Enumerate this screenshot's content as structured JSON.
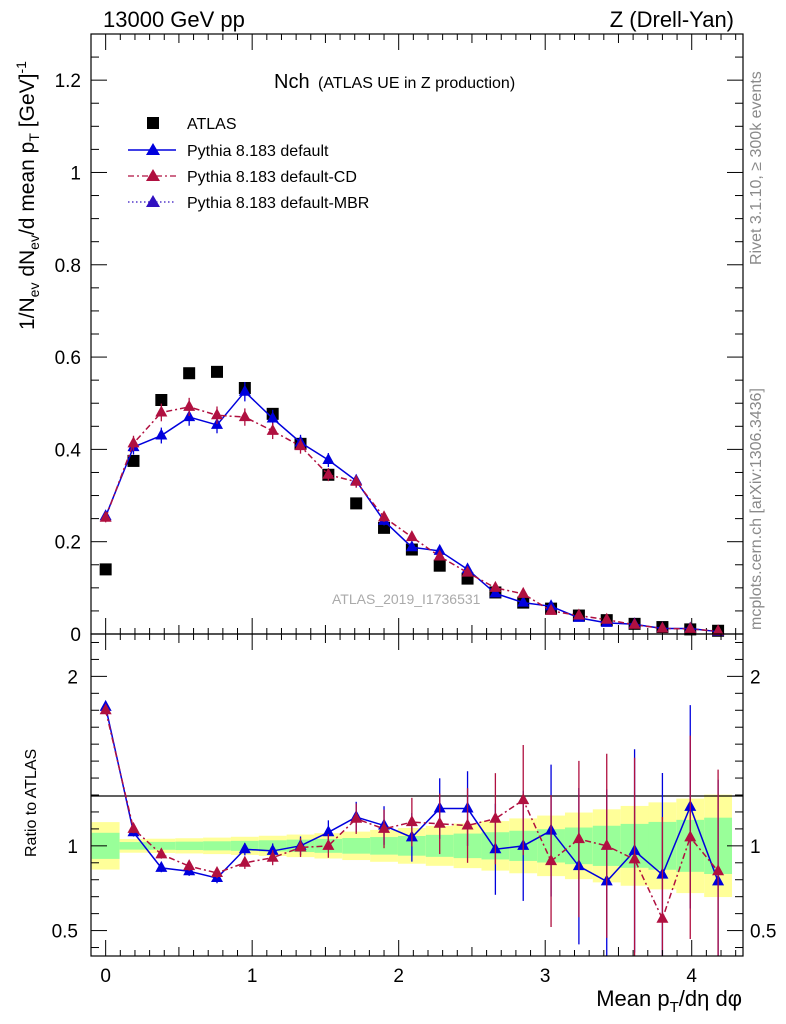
{
  "header": {
    "left": "13000 GeV pp",
    "right": "Z (Drell-Yan)"
  },
  "side_labels": {
    "rivet": "Rivet 3.1.10, ≥ 300k events",
    "mcplots": "mcplots.cern.ch [arXiv:1306.3436]"
  },
  "chart_data": {
    "type": "scatter",
    "title": "Nch",
    "subtitle": "(ATLAS UE in Z production)",
    "watermark": "ATLAS_2019_I1736531",
    "xlabel": "Mean p_T/dη dφ",
    "ylabel": "1/N_ev dN_ev/d mean p_T [GeV]^-1",
    "ratio_ylabel": "Ratio to ATLAS",
    "xlim": [
      -0.1,
      4.35
    ],
    "ylim": [
      0,
      1.3
    ],
    "ratio_ylim": [
      0.35,
      2.25
    ],
    "x_ticks": [
      "0",
      "1",
      "2",
      "3",
      "4"
    ],
    "y_ticks": [
      "0",
      "0.2",
      "0.4",
      "0.6",
      "0.8",
      "1",
      "1.2"
    ],
    "ratio_ticks": [
      "0.5",
      "1",
      "2"
    ],
    "x": [
      0.0,
      0.19,
      0.38,
      0.57,
      0.76,
      0.95,
      1.14,
      1.33,
      1.52,
      1.71,
      1.9,
      2.09,
      2.28,
      2.47,
      2.66,
      2.85,
      3.04,
      3.23,
      3.42,
      3.61,
      3.8,
      3.99,
      4.18
    ],
    "atlas": [
      0.14,
      0.375,
      0.507,
      0.565,
      0.568,
      0.533,
      0.477,
      0.412,
      0.345,
      0.283,
      0.23,
      0.183,
      0.148,
      0.12,
      0.09,
      0.068,
      0.055,
      0.04,
      0.03,
      0.022,
      0.015,
      0.01,
      0.007
    ],
    "series": [
      {
        "name": "Pythia 8.183 default",
        "color": "#0000dd",
        "style": "solid",
        "values": [
          0.255,
          0.405,
          0.43,
          0.47,
          0.453,
          0.525,
          0.467,
          0.415,
          0.377,
          0.332,
          0.245,
          0.188,
          0.18,
          0.14,
          0.088,
          0.068,
          0.06,
          0.035,
          0.024,
          0.021,
          0.012,
          0.012,
          0.005
        ],
        "ratio": [
          1.82,
          1.08,
          0.87,
          0.85,
          0.81,
          0.98,
          0.97,
          1.0,
          1.08,
          1.17,
          1.12,
          1.05,
          1.22,
          1.22,
          0.98,
          1.0,
          1.09,
          0.88,
          0.79,
          0.97,
          0.83,
          1.23,
          0.79
        ]
      },
      {
        "name": "Pythia 8.183 default-CD",
        "color": "#b01040",
        "style": "dashdot",
        "values": [
          0.252,
          0.413,
          0.48,
          0.492,
          0.474,
          0.47,
          0.44,
          0.407,
          0.345,
          0.33,
          0.253,
          0.21,
          0.168,
          0.133,
          0.1,
          0.087,
          0.05,
          0.04,
          0.031,
          0.02,
          0.012,
          0.011,
          0.006
        ],
        "ratio": [
          1.8,
          1.1,
          0.95,
          0.88,
          0.84,
          0.9,
          0.93,
          0.99,
          1.0,
          1.16,
          1.1,
          1.14,
          1.13,
          1.12,
          1.16,
          1.27,
          0.91,
          1.04,
          1.0,
          0.92,
          0.57,
          1.05,
          0.85
        ]
      },
      {
        "name": "Pythia 8.183 default-MBR",
        "color": "#3010c0",
        "style": "dotted",
        "values": [],
        "ratio": []
      }
    ],
    "legend": [
      "ATLAS",
      "Pythia 8.183 default",
      "Pythia 8.183 default-CD",
      "Pythia 8.183 default-MBR"
    ],
    "legend_position": "top-left"
  }
}
